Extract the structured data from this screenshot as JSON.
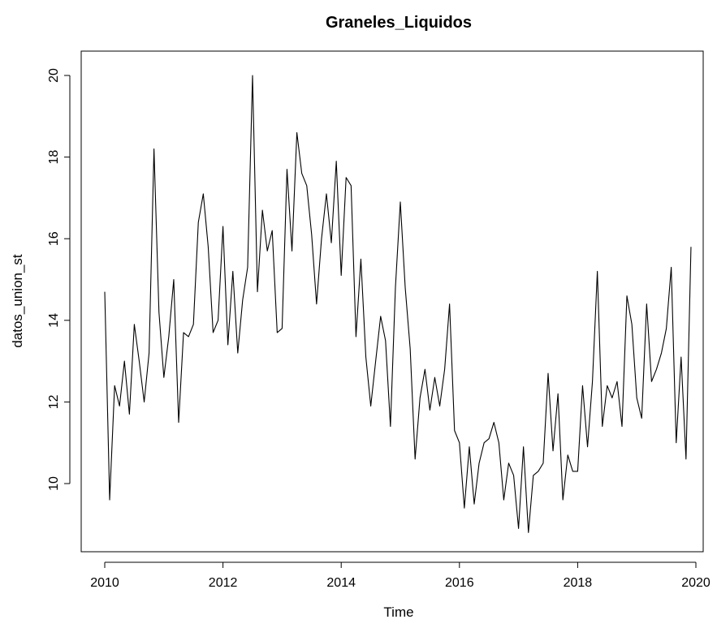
{
  "chart_data": {
    "type": "line",
    "title": "Graneles_Liquidos",
    "xlabel": "Time",
    "ylabel": "datos_union_st",
    "xlim": [
      2010,
      2020
    ],
    "ylim": [
      9,
      20
    ],
    "x_ticks": [
      2010,
      2012,
      2014,
      2016,
      2018,
      2020
    ],
    "y_ticks": [
      10,
      12,
      14,
      16,
      18,
      20
    ],
    "grid": false,
    "legend": "none",
    "line_color": "#000000",
    "series": [
      {
        "x": [
          2010.0,
          2010.083,
          2010.167,
          2010.25,
          2010.333,
          2010.417,
          2010.5,
          2010.583,
          2010.667,
          2010.75,
          2010.833,
          2010.917,
          2011.0,
          2011.083,
          2011.167,
          2011.25,
          2011.333,
          2011.417,
          2011.5,
          2011.583,
          2011.667,
          2011.75,
          2011.833,
          2011.917,
          2012.0,
          2012.083,
          2012.167,
          2012.25,
          2012.333,
          2012.417,
          2012.5,
          2012.583,
          2012.667,
          2012.75,
          2012.833,
          2012.917,
          2013.0,
          2013.083,
          2013.167,
          2013.25,
          2013.333,
          2013.417,
          2013.5,
          2013.583,
          2013.667,
          2013.75,
          2013.833,
          2013.917,
          2014.0,
          2014.083,
          2014.167,
          2014.25,
          2014.333,
          2014.417,
          2014.5,
          2014.583,
          2014.667,
          2014.75,
          2014.833,
          2014.917,
          2015.0,
          2015.083,
          2015.167,
          2015.25,
          2015.333,
          2015.417,
          2015.5,
          2015.583,
          2015.667,
          2015.75,
          2015.833,
          2015.917,
          2016.0,
          2016.083,
          2016.167,
          2016.25,
          2016.333,
          2016.417,
          2016.5,
          2016.583,
          2016.667,
          2016.75,
          2016.833,
          2016.917,
          2017.0,
          2017.083,
          2017.167,
          2017.25,
          2017.333,
          2017.417,
          2017.5,
          2017.583,
          2017.667,
          2017.75,
          2017.833,
          2017.917,
          2018.0,
          2018.083,
          2018.167,
          2018.25,
          2018.333,
          2018.417,
          2018.5,
          2018.583,
          2018.667,
          2018.75,
          2018.833,
          2018.917,
          2019.0,
          2019.083,
          2019.167,
          2019.25,
          2019.333,
          2019.417,
          2019.5,
          2019.583,
          2019.667,
          2019.75,
          2019.833,
          2019.917
        ],
        "y": [
          14.7,
          9.6,
          12.4,
          11.9,
          13.0,
          11.7,
          13.9,
          13.0,
          12.0,
          13.2,
          18.2,
          14.2,
          12.6,
          13.6,
          15.0,
          11.5,
          13.7,
          13.6,
          13.9,
          16.4,
          17.1,
          15.8,
          13.7,
          14.0,
          16.3,
          13.4,
          15.2,
          13.2,
          14.5,
          15.3,
          20.0,
          14.7,
          16.7,
          15.7,
          16.2,
          13.7,
          13.8,
          17.7,
          15.7,
          18.6,
          17.6,
          17.3,
          16.1,
          14.4,
          16.0,
          17.1,
          15.9,
          17.9,
          15.1,
          17.5,
          17.3,
          13.6,
          15.5,
          13.1,
          11.9,
          13.0,
          14.1,
          13.5,
          11.4,
          14.8,
          16.9,
          14.8,
          13.3,
          10.6,
          12.1,
          12.8,
          11.8,
          12.6,
          11.9,
          12.8,
          14.4,
          11.3,
          11.0,
          9.4,
          10.9,
          9.5,
          10.5,
          11.0,
          11.1,
          11.5,
          11.0,
          9.6,
          10.5,
          10.2,
          8.9,
          10.9,
          8.8,
          10.2,
          10.3,
          10.5,
          12.7,
          10.8,
          12.2,
          9.6,
          10.7,
          10.3,
          10.3,
          12.4,
          10.9,
          12.5,
          15.2,
          11.4,
          12.4,
          12.1,
          12.5,
          11.4,
          14.6,
          13.9,
          12.1,
          11.6,
          14.4,
          12.5,
          12.8,
          13.2,
          13.8,
          15.3,
          11.0,
          13.1,
          10.6,
          15.8
        ]
      }
    ]
  }
}
